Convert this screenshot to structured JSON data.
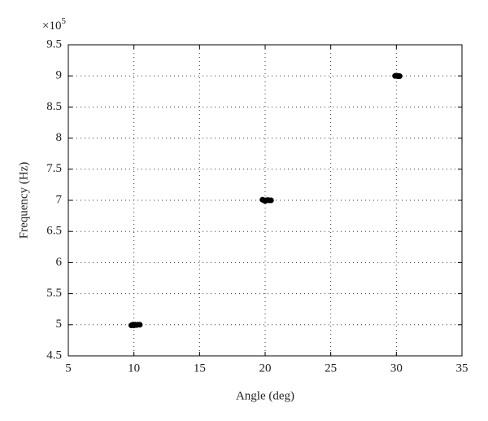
{
  "chart_data": {
    "type": "scatter",
    "x_label": "Angle (deg)",
    "y_label": "Frequency (Hz)",
    "y_multiplier": {
      "base": "×10",
      "exponent": "5"
    },
    "x": [
      9.8,
      9.9,
      10.0,
      10.1,
      10.2,
      10.3,
      10.45,
      19.8,
      19.9,
      20.0,
      20.1,
      20.2,
      20.3,
      20.45,
      29.9,
      30.0,
      30.1,
      30.2,
      30.25
    ],
    "series": [
      {
        "color": "#000000",
        "values": [
          4.99,
          5.0,
          4.99,
          5.0,
          4.995,
          5.0,
          5.0,
          7.01,
          7.0,
          6.99,
          7.0,
          7.005,
          7.0,
          7.0,
          9.0,
          9.005,
          8.995,
          9.0,
          8.995
        ]
      }
    ],
    "xlim": [
      5,
      35
    ],
    "xticks": [
      5,
      10,
      15,
      20,
      25,
      30,
      35
    ],
    "ylim": [
      4.5,
      9.5
    ],
    "yticks": [
      4.5,
      5,
      5.5,
      6,
      6.5,
      7,
      7.5,
      8,
      8.5,
      9,
      9.5
    ],
    "grid": true
  }
}
